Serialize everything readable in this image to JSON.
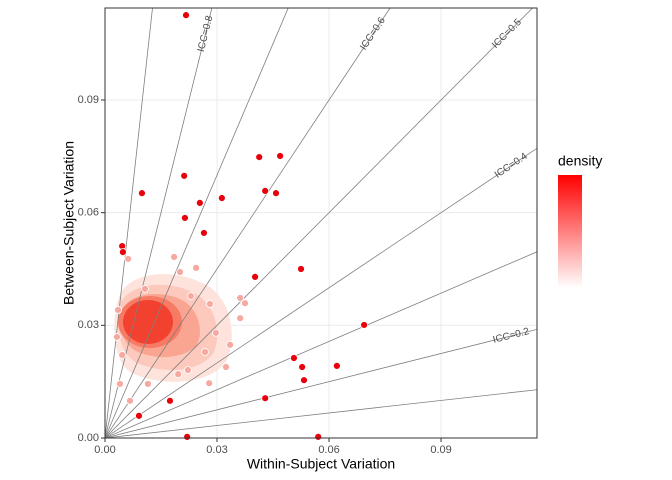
{
  "chart_data": {
    "type": "scatter",
    "x_label": "Within-Subject Variation",
    "y_label": "Between-Subject Variation",
    "legend_title": "density",
    "xlim": [
      0,
      0.1157
    ],
    "ylim": [
      0,
      0.1145
    ],
    "xticks": [
      {
        "value": 0,
        "label": "0.00"
      },
      0.03,
      0.06,
      0.09
    ],
    "yticks": [
      {
        "value": 0,
        "label": "0.00"
      },
      0.03,
      0.06,
      0.09
    ],
    "grid": true,
    "icc_lines": [
      0.1,
      0.2,
      0.3,
      0.4,
      0.5,
      0.6,
      0.7,
      0.8,
      0.9
    ],
    "icc_labels": [
      {
        "value": 0.2,
        "label": "ICC=0.2"
      },
      {
        "value": 0.4,
        "label": "ICC=0.4"
      },
      {
        "value": 0.5,
        "label": "ICC=0.5"
      },
      {
        "value": 0.6,
        "label": "ICC=0.6"
      },
      {
        "value": 0.8,
        "label": "ICC=0.8"
      }
    ],
    "series": [
      {
        "color": "#f7a8a0",
        "x": [
          0.0185,
          0.0201,
          0.0244,
          0.0062,
          0.0362,
          0.0375,
          0.0362,
          0.0335,
          0.0324,
          0.0279,
          0.0222,
          0.0196,
          0.0115,
          0.004,
          0.0067,
          0.0032,
          0.0035,
          0.0046,
          0.0107,
          0.0281,
          0.0297,
          0.0268,
          0.023
        ],
        "y": [
          0.0482,
          0.0442,
          0.0453,
          0.0477,
          0.0373,
          0.0359,
          0.0319,
          0.0248,
          0.0189,
          0.0146,
          0.0181,
          0.017,
          0.0144,
          0.0144,
          0.0099,
          0.0269,
          0.0341,
          0.0221,
          0.0397,
          0.0357,
          0.028,
          0.0229,
          0.0378
        ]
      },
      {
        "color": "#e8000b",
        "x": [
          0.0217,
          0.0212,
          0.0099,
          0.0413,
          0.0469,
          0.0313,
          0.0429,
          0.0458,
          0.0254,
          0.0214,
          0.0265,
          0.0046,
          0.0048,
          0.0402,
          0.0525,
          0.0694,
          0.0506,
          0.0621,
          0.0528,
          0.0533,
          0.0429,
          0.0174,
          0.0091,
          0.022,
          0.0571
        ],
        "y": [
          0.1126,
          0.0698,
          0.0652,
          0.0748,
          0.0751,
          0.0639,
          0.0658,
          0.0652,
          0.0626,
          0.0586,
          0.0546,
          0.0511,
          0.0495,
          0.0429,
          0.045,
          0.0301,
          0.0213,
          0.0192,
          0.0189,
          0.0154,
          0.0106,
          0.0099,
          0.0059,
          0.0003,
          0.0003
        ]
      }
    ]
  }
}
